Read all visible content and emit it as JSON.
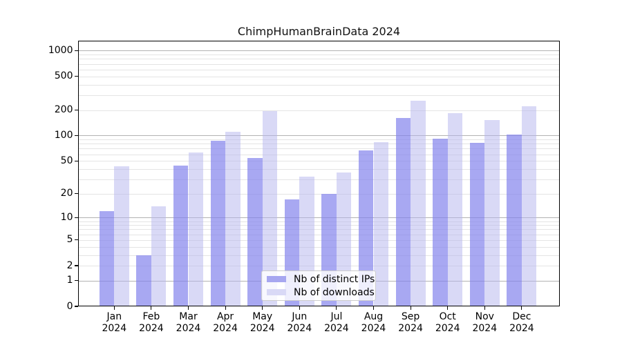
{
  "chart_data": {
    "type": "bar",
    "title": "ChimpHumanBrainData 2024",
    "categories": [
      "Jan 2024",
      "Feb 2024",
      "Mar 2024",
      "Apr 2024",
      "May 2024",
      "Jun 2024",
      "Jul 2024",
      "Aug 2024",
      "Sep 2024",
      "Oct 2024",
      "Nov 2024",
      "Dec 2024"
    ],
    "series": [
      {
        "name": "Nb of distinct IPs",
        "legend_color": "#a7a7f0",
        "bar_fill": "rgba(131,131,236,0.70)",
        "values": [
          12,
          3,
          44,
          87,
          54,
          17,
          20,
          66,
          160,
          92,
          82,
          103
        ]
      },
      {
        "name": "Nb of downloads",
        "legend_color": "#d9d9f6",
        "bar_fill": "rgba(179,179,237,0.50)",
        "values": [
          43,
          14,
          63,
          110,
          195,
          32,
          36,
          84,
          258,
          185,
          152,
          220
        ]
      }
    ],
    "yscale": "log10(1+v)",
    "yticks": [
      0,
      1,
      2,
      5,
      10,
      20,
      50,
      100,
      200,
      500,
      1000
    ],
    "ylim": [
      0,
      1300
    ],
    "xlabel": "",
    "ylabel": "",
    "grid": true,
    "legend_position": "lower center"
  }
}
